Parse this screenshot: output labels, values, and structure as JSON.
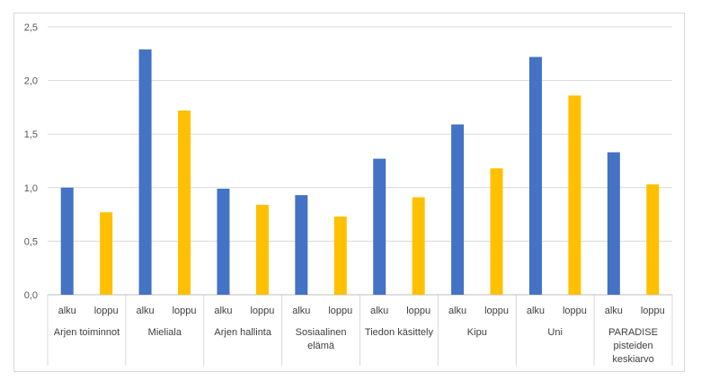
{
  "chart_data": {
    "type": "bar",
    "title": "",
    "xlabel": "",
    "ylabel": "",
    "ylim": [
      0,
      2.5
    ],
    "ytick_step": 0.5,
    "ytick_labels": [
      "0,0",
      "0,5",
      "1,0",
      "1,5",
      "2,0",
      "2,5"
    ],
    "grid": true,
    "legend": "none",
    "sub_labels": [
      "alku",
      "loppu"
    ],
    "categories": [
      [
        "Arjen toiminnot"
      ],
      [
        "Mieliala"
      ],
      [
        "Arjen hallinta"
      ],
      [
        "Sosiaalinen",
        "elämä"
      ],
      [
        "Tiedon käsittely"
      ],
      [
        "Kipu"
      ],
      [
        "Uni"
      ],
      [
        "PARADISE",
        "pisteiden",
        "keskiarvo"
      ]
    ],
    "series": [
      {
        "values": [
          1.0,
          2.29,
          0.99,
          0.93,
          1.27,
          1.59,
          2.22,
          1.33
        ]
      },
      {
        "values": [
          0.77,
          1.72,
          0.84,
          0.73,
          0.91,
          1.18,
          1.86,
          1.03
        ]
      }
    ],
    "colors": {
      "alku": "#4472c4",
      "loppu": "#ffc000",
      "grid": "#d9d9d9",
      "axis": "#bfbfbf"
    }
  }
}
